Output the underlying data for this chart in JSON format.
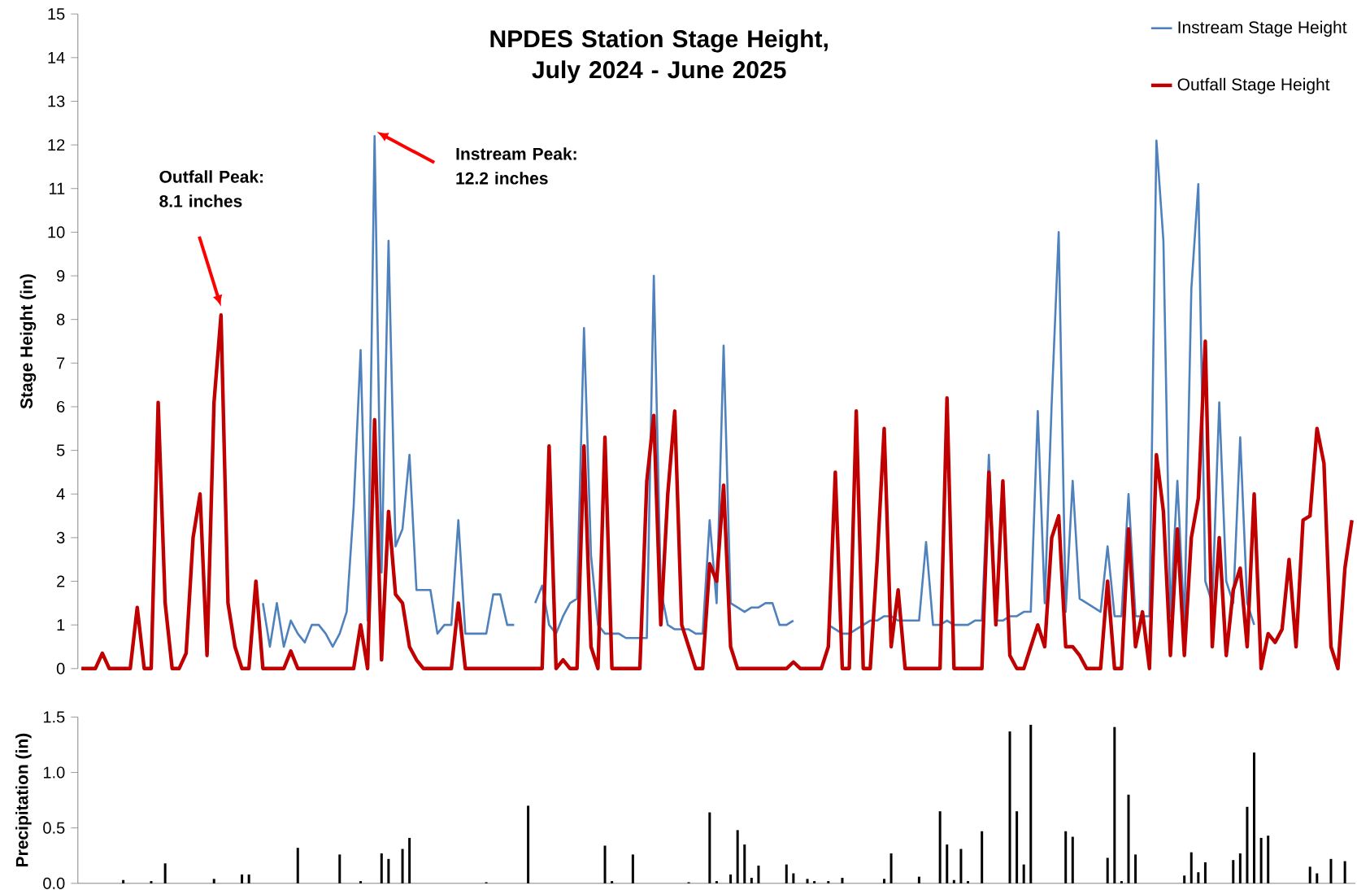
{
  "chart_data": [
    {
      "type": "line",
      "title": "NPDES Station Stage Height, July 2024 - June 2025",
      "ylabel": "Stage Height (in)",
      "ylim": [
        0,
        15
      ],
      "yticks": [
        0,
        1,
        2,
        3,
        4,
        5,
        6,
        7,
        8,
        9,
        10,
        11,
        12,
        13,
        14,
        15
      ],
      "tick_labels": "y",
      "legend": "top right",
      "categories": [
        null,
        null,
        null,
        null,
        null,
        null,
        null,
        null,
        null,
        null,
        null,
        null,
        null,
        null,
        null,
        null,
        null,
        null,
        null,
        null,
        null,
        null,
        null,
        null,
        null,
        null,
        null,
        null,
        null,
        null,
        null,
        null,
        null,
        null,
        null,
        null,
        null,
        null,
        null,
        null,
        null,
        null,
        null,
        null,
        null,
        null,
        null,
        null,
        null,
        null,
        null,
        null,
        null,
        null,
        null,
        null,
        null,
        null,
        null,
        null,
        null,
        null,
        null,
        null,
        null,
        null,
        null,
        null,
        null,
        null,
        null,
        null,
        null,
        null,
        null,
        null,
        null,
        null,
        null,
        null,
        null,
        null,
        null,
        null,
        null,
        null,
        null,
        null,
        null,
        null,
        null,
        null,
        null,
        null,
        null,
        null,
        null,
        null,
        null,
        null,
        null,
        null,
        null,
        null,
        null,
        null,
        null,
        null,
        null,
        null,
        null,
        null,
        null,
        null,
        null,
        null,
        null,
        null,
        null,
        null,
        null,
        null,
        null,
        null,
        null,
        null,
        null,
        null,
        null,
        null,
        null,
        null,
        null,
        null,
        null,
        null,
        null,
        null,
        null,
        null,
        null,
        null,
        null,
        null,
        null,
        null,
        null,
        null,
        null,
        null,
        null,
        null,
        null,
        null,
        null,
        null,
        null,
        null,
        null,
        null,
        null,
        null,
        null,
        null,
        null,
        null,
        null,
        null,
        null,
        null,
        null,
        null,
        null,
        null,
        null,
        null,
        null,
        null,
        null,
        null,
        null,
        null,
        null
      ],
      "series": [
        {
          "name": "Instream Stage Height",
          "color": "#4f81bd",
          "values": [
            null,
            null,
            null,
            null,
            null,
            null,
            null,
            null,
            null,
            null,
            null,
            null,
            null,
            null,
            null,
            null,
            null,
            null,
            null,
            null,
            null,
            null,
            null,
            null,
            null,
            null,
            1.5,
            0.5,
            1.5,
            0.5,
            1.1,
            0.8,
            0.6,
            1.0,
            1.0,
            0.8,
            0.5,
            0.8,
            1.3,
            3.7,
            7.3,
            1.1,
            12.2,
            2.2,
            9.8,
            2.8,
            3.2,
            4.9,
            1.8,
            1.8,
            1.8,
            0.8,
            1.0,
            1.0,
            3.4,
            0.8,
            0.8,
            0.8,
            0.8,
            1.7,
            1.7,
            1.0,
            1.0,
            null,
            null,
            1.5,
            1.9,
            1.0,
            0.8,
            1.2,
            1.5,
            1.6,
            7.8,
            2.6,
            1.0,
            0.8,
            0.8,
            0.8,
            0.7,
            0.7,
            0.7,
            0.7,
            9.0,
            1.8,
            1.0,
            0.9,
            0.9,
            0.9,
            0.8,
            0.8,
            3.4,
            1.5,
            7.4,
            1.5,
            1.4,
            1.3,
            1.4,
            1.4,
            1.5,
            1.5,
            1.0,
            1.0,
            1.1,
            null,
            null,
            null,
            null,
            1.0,
            0.9,
            0.8,
            0.8,
            0.9,
            1.0,
            1.1,
            1.1,
            1.2,
            1.2,
            1.1,
            1.1,
            1.1,
            1.1,
            2.9,
            1.0,
            1.0,
            1.1,
            1.0,
            1.0,
            1.0,
            1.1,
            1.1,
            4.9,
            1.1,
            1.1,
            1.2,
            1.2,
            1.3,
            1.3,
            5.9,
            1.5,
            6.1,
            10.0,
            1.3,
            4.3,
            1.6,
            1.5,
            1.4,
            1.3,
            2.8,
            1.2,
            1.2,
            4.0,
            1.2,
            1.2,
            1.2,
            12.1,
            9.8,
            1.2,
            4.3,
            1.0,
            8.7,
            11.1,
            2.0,
            1.5,
            6.1,
            2.0,
            1.5,
            5.3,
            1.5,
            1.0,
            null,
            null,
            null,
            null,
            null,
            null,
            null,
            null,
            null,
            null,
            null,
            null,
            null,
            null
          ]
        },
        {
          "name": "Outfall Stage Height",
          "color": "#c00000",
          "values": [
            0,
            0,
            0,
            0.35,
            0,
            0,
            0,
            0,
            1.4,
            0,
            0,
            6.1,
            1.5,
            0,
            0,
            0.35,
            3.0,
            4.0,
            0.3,
            6.1,
            8.1,
            1.5,
            0.5,
            0,
            0,
            2.0,
            0,
            0,
            0,
            0,
            0.4,
            0,
            0,
            0,
            0,
            0,
            0,
            0,
            0,
            0,
            1.0,
            0,
            5.7,
            0.2,
            3.6,
            1.7,
            1.5,
            0.5,
            0.2,
            0,
            0,
            0,
            0,
            0,
            1.5,
            0,
            0,
            0,
            0,
            0,
            0,
            0,
            0,
            0,
            0,
            0,
            0,
            5.1,
            0,
            0.2,
            0,
            0,
            5.1,
            0.5,
            0,
            5.3,
            0,
            0,
            0,
            0,
            0,
            4.3,
            5.8,
            1.0,
            4.0,
            5.9,
            1.0,
            0.5,
            0,
            0,
            2.4,
            2.0,
            4.2,
            0.5,
            0,
            0,
            0,
            0,
            0,
            0,
            0,
            0,
            0.15,
            0,
            0,
            0,
            0,
            0.5,
            4.5,
            0,
            0,
            5.9,
            0,
            0,
            2.5,
            5.5,
            0.5,
            1.8,
            0,
            0,
            0,
            0,
            0,
            0,
            6.2,
            0,
            0,
            0,
            0,
            0,
            4.5,
            1.0,
            4.3,
            0.3,
            0,
            0,
            0.5,
            1.0,
            0.5,
            3.0,
            3.5,
            0.5,
            0.5,
            0.3,
            0,
            0,
            0,
            2.0,
            0,
            0,
            3.2,
            0.5,
            1.3,
            0,
            4.9,
            3.6,
            0.3,
            3.2,
            0.3,
            3.0,
            3.9,
            7.5,
            0.5,
            3.0,
            0.3,
            1.8,
            2.3,
            0.5,
            4.0,
            0,
            0.8,
            0.6,
            0.9,
            2.5,
            0.5,
            3.4,
            3.5,
            5.5,
            4.7,
            0.5,
            0,
            2.3,
            3.4
          ]
        }
      ],
      "annotations": [
        "Outfall Peak: 8.1 inches",
        "Instream Peak: 12.2 inches"
      ]
    },
    {
      "type": "bar",
      "ylabel": "Precipitation (in)",
      "ylim": [
        0,
        1.5
      ],
      "yticks": [
        {
          "value": 0,
          "label": "0.0"
        },
        {
          "value": 0.5,
          "label": "0.5"
        },
        {
          "value": 1,
          "label": "1.0"
        },
        {
          "value": 1.5,
          "label": "1.5"
        }
      ],
      "tick_labels": "y",
      "color": "#000000",
      "categories": [
        null,
        null,
        null,
        null,
        null,
        null,
        null,
        null,
        null,
        null,
        null,
        null,
        null,
        null,
        null,
        null,
        null,
        null,
        null,
        null,
        null,
        null,
        null,
        null,
        null,
        null,
        null,
        null,
        null,
        null,
        null,
        null,
        null,
        null,
        null,
        null,
        null,
        null,
        null,
        null,
        null,
        null,
        null,
        null,
        null,
        null,
        null,
        null,
        null,
        null,
        null,
        null,
        null,
        null,
        null,
        null,
        null,
        null,
        null,
        null,
        null,
        null,
        null,
        null,
        null,
        null,
        null,
        null,
        null,
        null,
        null,
        null,
        null,
        null,
        null,
        null,
        null,
        null,
        null,
        null,
        null,
        null,
        null,
        null,
        null,
        null,
        null,
        null,
        null,
        null,
        null,
        null,
        null,
        null,
        null,
        null,
        null,
        null,
        null,
        null,
        null,
        null,
        null,
        null,
        null,
        null,
        null,
        null,
        null,
        null,
        null,
        null,
        null,
        null,
        null,
        null,
        null,
        null,
        null,
        null,
        null,
        null,
        null,
        null,
        null,
        null,
        null,
        null,
        null,
        null,
        null,
        null,
        null,
        null,
        null,
        null,
        null,
        null,
        null,
        null,
        null,
        null,
        null,
        null,
        null,
        null,
        null,
        null,
        null,
        null,
        null,
        null,
        null,
        null,
        null,
        null,
        null,
        null,
        null,
        null,
        null,
        null,
        null,
        null,
        null,
        null,
        null,
        null,
        null,
        null,
        null,
        null,
        null,
        null,
        null,
        null,
        null,
        null,
        null,
        null,
        null,
        null,
        null
      ],
      "values": [
        0,
        0,
        0,
        0,
        0,
        0,
        0.03,
        0,
        0,
        0,
        0.02,
        0,
        0.18,
        0,
        0,
        0,
        0,
        0,
        0,
        0.04,
        0,
        0,
        0,
        0.08,
        0.08,
        0,
        0,
        0,
        0,
        0,
        0,
        0.32,
        0,
        0,
        0,
        0,
        0,
        0.26,
        0,
        0,
        0.02,
        0,
        0,
        0.27,
        0.22,
        0,
        0.31,
        0.41,
        0,
        0,
        0,
        0,
        0,
        0,
        0,
        0,
        0,
        0,
        0.01,
        0,
        0,
        0,
        0,
        0,
        0.7,
        0,
        0,
        0,
        0,
        0,
        0,
        0,
        0,
        0,
        0,
        0.34,
        0.02,
        0,
        0,
        0.26,
        0,
        0,
        0,
        0,
        0,
        0,
        0,
        0.01,
        0,
        0,
        0.64,
        0.02,
        0,
        0.08,
        0.48,
        0.35,
        0.05,
        0.16,
        0,
        0,
        0,
        0.17,
        0.09,
        0,
        0.04,
        0.02,
        0,
        0.02,
        0,
        0.05,
        0,
        0,
        0,
        0,
        0,
        0.04,
        0.27,
        0,
        0,
        0,
        0.06,
        0,
        0,
        0.65,
        0.35,
        0.03,
        0.31,
        0.02,
        0,
        0.47,
        0,
        0,
        0,
        1.37,
        0.65,
        0.17,
        1.43,
        0,
        0,
        0,
        0,
        0.47,
        0.42,
        0,
        0,
        0,
        0,
        0.23,
        1.41,
        0.02,
        0.8,
        0.26,
        0,
        0,
        0,
        0,
        0,
        0,
        0.07,
        0.28,
        0.1,
        0.19,
        0,
        0,
        0,
        0.21,
        0.27,
        0.69,
        1.18,
        0.41,
        0.43,
        0,
        0,
        0,
        0,
        0,
        0.15,
        0.09,
        0,
        0.22,
        0,
        0.2,
        0
      ]
    }
  ]
}
